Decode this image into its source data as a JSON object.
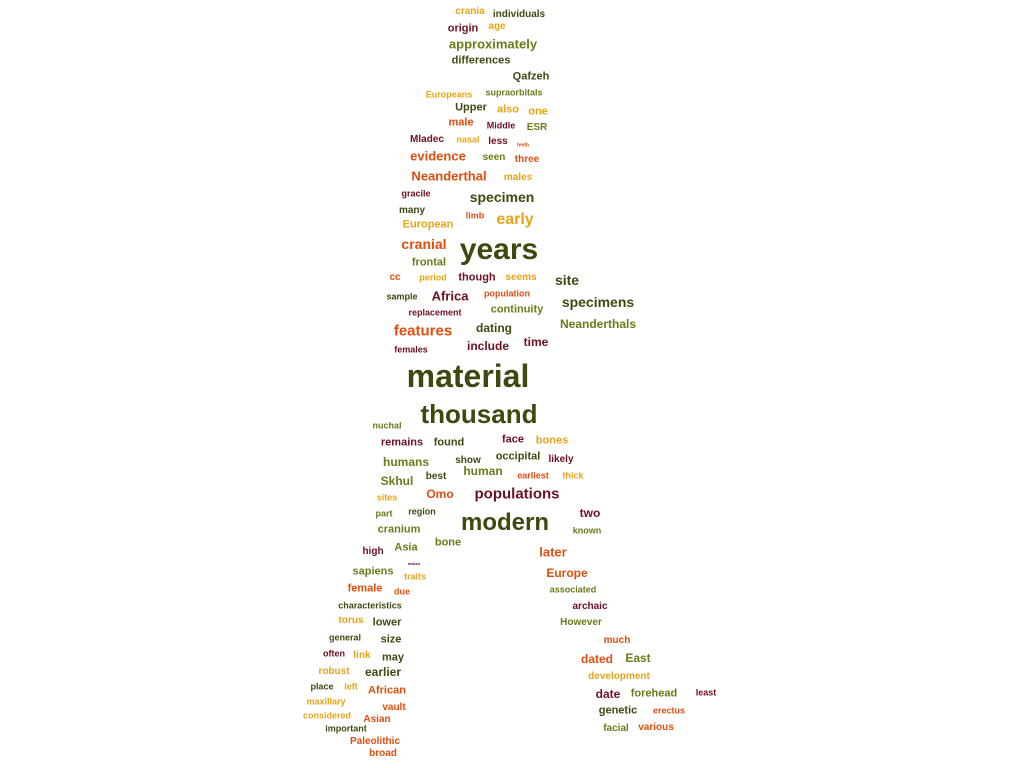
{
  "palette": {
    "dark_green": "#3c4a10",
    "olive": "#6b7a1a",
    "maroon": "#6e0f22",
    "orange_red": "#e04e0e",
    "gold": "#e8a317"
  },
  "words": [
    {
      "text": "crania",
      "color": "gold"
    },
    {
      "text": "individuals",
      "color": "dark_green"
    },
    {
      "text": "origin",
      "color": "maroon"
    },
    {
      "text": "age",
      "color": "gold"
    },
    {
      "text": "approximately",
      "color": "olive"
    },
    {
      "text": "differences",
      "color": "dark_green"
    },
    {
      "text": "Qafzeh",
      "color": "dark_green"
    },
    {
      "text": "Europeans",
      "color": "gold"
    },
    {
      "text": "supraorbitals",
      "color": "olive"
    },
    {
      "text": "Upper",
      "color": "dark_green"
    },
    {
      "text": "also",
      "color": "gold"
    },
    {
      "text": "one",
      "color": "gold"
    },
    {
      "text": "male",
      "color": "orange_red"
    },
    {
      "text": "Middle",
      "color": "maroon"
    },
    {
      "text": "ESR",
      "color": "olive"
    },
    {
      "text": "Mladec",
      "color": "maroon"
    },
    {
      "text": "nasal",
      "color": "gold"
    },
    {
      "text": "less",
      "color": "maroon"
    },
    {
      "text": "teeth",
      "color": "orange_red"
    },
    {
      "text": "evidence",
      "color": "orange_red"
    },
    {
      "text": "seen",
      "color": "olive"
    },
    {
      "text": "three",
      "color": "orange_red"
    },
    {
      "text": "Neanderthal",
      "color": "orange_red"
    },
    {
      "text": "males",
      "color": "gold"
    },
    {
      "text": "gracile",
      "color": "maroon"
    },
    {
      "text": "specimen",
      "color": "dark_green"
    },
    {
      "text": "many",
      "color": "dark_green"
    },
    {
      "text": "limb",
      "color": "orange_red"
    },
    {
      "text": "early",
      "color": "gold"
    },
    {
      "text": "European",
      "color": "gold"
    },
    {
      "text": "cranial",
      "color": "orange_red"
    },
    {
      "text": "years",
      "color": "dark_green"
    },
    {
      "text": "frontal",
      "color": "olive"
    },
    {
      "text": "cc",
      "color": "orange_red"
    },
    {
      "text": "period",
      "color": "gold"
    },
    {
      "text": "though",
      "color": "maroon"
    },
    {
      "text": "seems",
      "color": "gold"
    },
    {
      "text": "site",
      "color": "dark_green"
    },
    {
      "text": "sample",
      "color": "dark_green"
    },
    {
      "text": "Africa",
      "color": "maroon"
    },
    {
      "text": "population",
      "color": "orange_red"
    },
    {
      "text": "specimens",
      "color": "dark_green"
    },
    {
      "text": "replacement",
      "color": "maroon"
    },
    {
      "text": "continuity",
      "color": "olive"
    },
    {
      "text": "features",
      "color": "orange_red"
    },
    {
      "text": "dating",
      "color": "dark_green"
    },
    {
      "text": "Neanderthals",
      "color": "olive"
    },
    {
      "text": "include",
      "color": "maroon"
    },
    {
      "text": "time",
      "color": "maroon"
    },
    {
      "text": "females",
      "color": "maroon"
    },
    {
      "text": "material",
      "color": "dark_green"
    },
    {
      "text": "thousand",
      "color": "dark_green"
    },
    {
      "text": "nuchal",
      "color": "olive"
    },
    {
      "text": "remains",
      "color": "maroon"
    },
    {
      "text": "found",
      "color": "dark_green"
    },
    {
      "text": "face",
      "color": "maroon"
    },
    {
      "text": "bones",
      "color": "gold"
    },
    {
      "text": "occipital",
      "color": "dark_green"
    },
    {
      "text": "humans",
      "color": "olive"
    },
    {
      "text": "show",
      "color": "dark_green"
    },
    {
      "text": "human",
      "color": "olive"
    },
    {
      "text": "likely",
      "color": "maroon"
    },
    {
      "text": "Skhul",
      "color": "olive"
    },
    {
      "text": "best",
      "color": "dark_green"
    },
    {
      "text": "earliest",
      "color": "orange_red"
    },
    {
      "text": "thick",
      "color": "gold"
    },
    {
      "text": "Omo",
      "color": "orange_red"
    },
    {
      "text": "populations",
      "color": "maroon"
    },
    {
      "text": "sites",
      "color": "gold"
    },
    {
      "text": "part",
      "color": "olive"
    },
    {
      "text": "region",
      "color": "dark_green"
    },
    {
      "text": "modern",
      "color": "dark_green"
    },
    {
      "text": "two",
      "color": "maroon"
    },
    {
      "text": "cranium",
      "color": "olive"
    },
    {
      "text": "known",
      "color": "olive"
    },
    {
      "text": "bone",
      "color": "olive"
    },
    {
      "text": "high",
      "color": "maroon"
    },
    {
      "text": "Asia",
      "color": "olive"
    },
    {
      "text": "later",
      "color": "orange_red"
    },
    {
      "text": "makes",
      "color": "maroon"
    },
    {
      "text": "sapiens",
      "color": "olive"
    },
    {
      "text": "traits",
      "color": "gold"
    },
    {
      "text": "Europe",
      "color": "orange_red"
    },
    {
      "text": "female",
      "color": "orange_red"
    },
    {
      "text": "due",
      "color": "orange_red"
    },
    {
      "text": "associated",
      "color": "olive"
    },
    {
      "text": "characteristics",
      "color": "dark_green"
    },
    {
      "text": "archaic",
      "color": "maroon"
    },
    {
      "text": "torus",
      "color": "gold"
    },
    {
      "text": "lower",
      "color": "dark_green"
    },
    {
      "text": "However",
      "color": "olive"
    },
    {
      "text": "general",
      "color": "dark_green"
    },
    {
      "text": "size",
      "color": "dark_green"
    },
    {
      "text": "much",
      "color": "orange_red"
    },
    {
      "text": "often",
      "color": "maroon"
    },
    {
      "text": "link",
      "color": "gold"
    },
    {
      "text": "may",
      "color": "dark_green"
    },
    {
      "text": "dated",
      "color": "orange_red"
    },
    {
      "text": "East",
      "color": "olive"
    },
    {
      "text": "robust",
      "color": "gold"
    },
    {
      "text": "earlier",
      "color": "dark_green"
    },
    {
      "text": "development",
      "color": "gold"
    },
    {
      "text": "place",
      "color": "dark_green"
    },
    {
      "text": "left",
      "color": "gold"
    },
    {
      "text": "African",
      "color": "orange_red"
    },
    {
      "text": "date",
      "color": "maroon"
    },
    {
      "text": "forehead",
      "color": "olive"
    },
    {
      "text": "least",
      "color": "maroon"
    },
    {
      "text": "maxillary",
      "color": "gold"
    },
    {
      "text": "vault",
      "color": "orange_red"
    },
    {
      "text": "genetic",
      "color": "dark_green"
    },
    {
      "text": "erectus",
      "color": "orange_red"
    },
    {
      "text": "considered",
      "color": "gold"
    },
    {
      "text": "Asian",
      "color": "orange_red"
    },
    {
      "text": "important",
      "color": "dark_green"
    },
    {
      "text": "facial",
      "color": "olive"
    },
    {
      "text": "various",
      "color": "orange_red"
    },
    {
      "text": "Paleolithic",
      "color": "orange_red"
    },
    {
      "text": "broad",
      "color": "orange_red"
    }
  ]
}
